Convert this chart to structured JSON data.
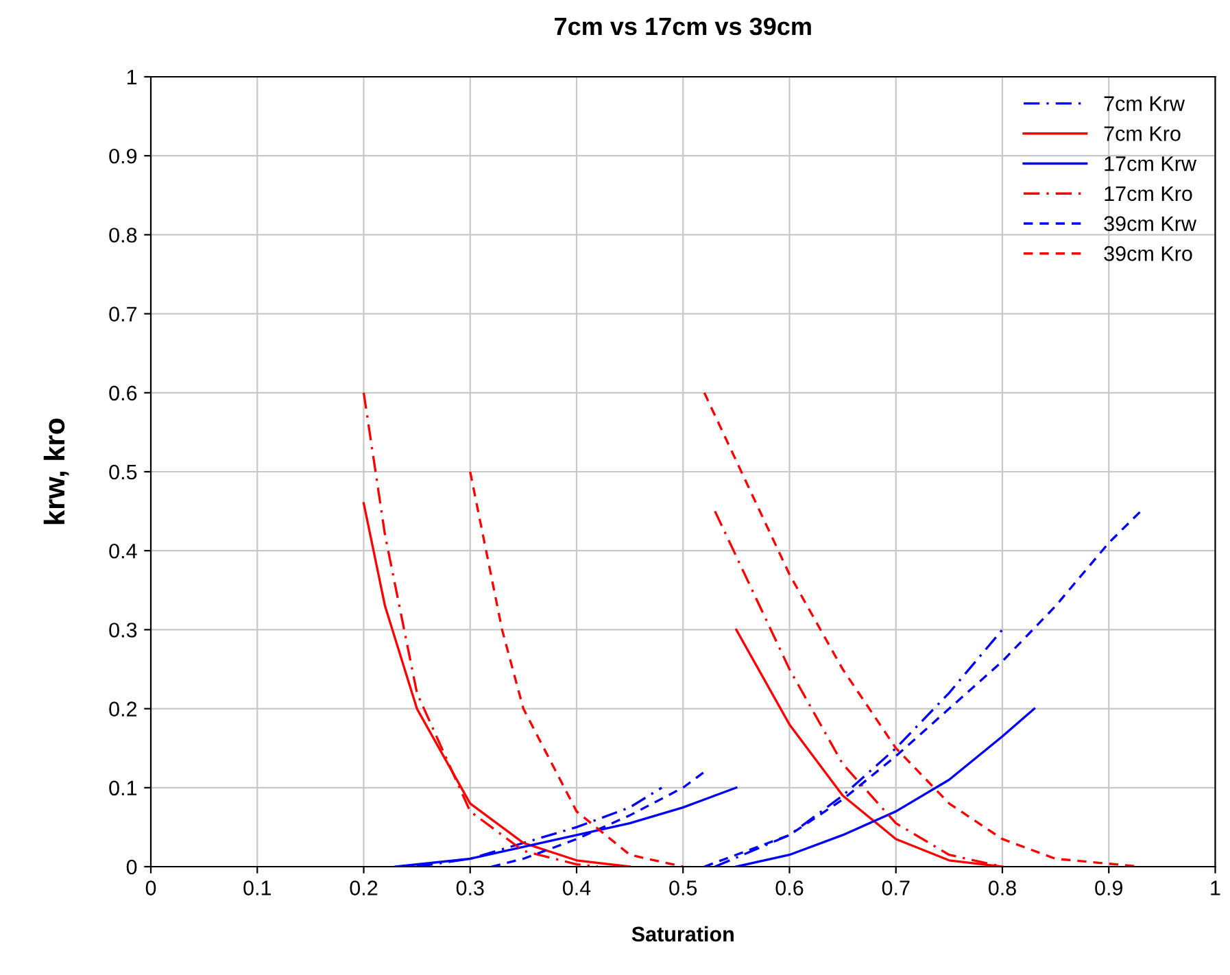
{
  "chart_data": {
    "type": "line",
    "title": "7cm vs 17cm vs 39cm",
    "xlabel": "Saturation",
    "ylabel": "krw, kro",
    "xlim": [
      0,
      1
    ],
    "ylim": [
      0,
      1
    ],
    "xticks": [
      0,
      0.1,
      0.2,
      0.3,
      0.4,
      0.5,
      0.6,
      0.7,
      0.8,
      0.9,
      1
    ],
    "yticks": [
      0,
      0.1,
      0.2,
      0.3,
      0.4,
      0.5,
      0.6,
      0.7,
      0.8,
      0.9,
      1
    ],
    "grid": true,
    "legend": "top right",
    "marker": "none",
    "series": [
      {
        "name": "7cm Krw",
        "color": "#0000ff",
        "line_style": "dashdot",
        "x": [
          0.25,
          0.3,
          0.35,
          0.4,
          0.45,
          0.48,
          null,
          0.53,
          0.6,
          0.65,
          0.7,
          0.75,
          0.8
        ],
        "values": [
          0,
          0.01,
          0.03,
          0.05,
          0.075,
          0.1,
          null,
          0,
          0.04,
          0.09,
          0.15,
          0.22,
          0.3
        ]
      },
      {
        "name": "7cm Kro",
        "color": "#ff0000",
        "line_style": "solid",
        "x": [
          0.2,
          0.22,
          0.25,
          0.3,
          0.35,
          0.4,
          0.45,
          null,
          0.55,
          0.6,
          0.65,
          0.7,
          0.75,
          0.8
        ],
        "values": [
          0.46,
          0.33,
          0.2,
          0.08,
          0.03,
          0.008,
          0,
          null,
          0.3,
          0.18,
          0.09,
          0.035,
          0.008,
          0
        ]
      },
      {
        "name": "17cm Krw",
        "color": "#0000ff",
        "line_style": "solid",
        "x": [
          0.23,
          0.3,
          0.35,
          0.4,
          0.45,
          0.5,
          0.55,
          null,
          0.55,
          0.6,
          0.65,
          0.7,
          0.75,
          0.8,
          0.83
        ],
        "values": [
          0,
          0.01,
          0.025,
          0.04,
          0.055,
          0.075,
          0.1,
          null,
          0,
          0.015,
          0.04,
          0.07,
          0.11,
          0.165,
          0.2
        ]
      },
      {
        "name": "17cm Kro",
        "color": "#ff0000",
        "line_style": "dashdot",
        "x": [
          0.2,
          0.22,
          0.25,
          0.3,
          0.35,
          0.4,
          0.42,
          null,
          0.53,
          0.6,
          0.65,
          0.7,
          0.75,
          0.8
        ],
        "values": [
          0.6,
          0.42,
          0.22,
          0.07,
          0.02,
          0.003,
          0,
          null,
          0.45,
          0.25,
          0.13,
          0.055,
          0.015,
          0
        ]
      },
      {
        "name": "39cm Krw",
        "color": "#0000ff",
        "line_style": "dashed",
        "x": [
          0.32,
          0.35,
          0.4,
          0.45,
          0.5,
          0.52,
          null,
          0.52,
          0.6,
          0.65,
          0.7,
          0.75,
          0.8,
          0.85,
          0.9,
          0.93
        ],
        "values": [
          0,
          0.01,
          0.035,
          0.065,
          0.1,
          0.12,
          null,
          0,
          0.04,
          0.085,
          0.14,
          0.2,
          0.26,
          0.33,
          0.41,
          0.45
        ]
      },
      {
        "name": "39cm Kro",
        "color": "#ff0000",
        "line_style": "dashed",
        "x": [
          0.3,
          0.33,
          0.35,
          0.4,
          0.45,
          0.5,
          null,
          0.52,
          0.6,
          0.65,
          0.7,
          0.75,
          0.8,
          0.85,
          0.93
        ],
        "values": [
          0.5,
          0.3,
          0.2,
          0.07,
          0.015,
          0,
          null,
          0.6,
          0.37,
          0.25,
          0.15,
          0.08,
          0.035,
          0.01,
          0
        ]
      }
    ]
  }
}
